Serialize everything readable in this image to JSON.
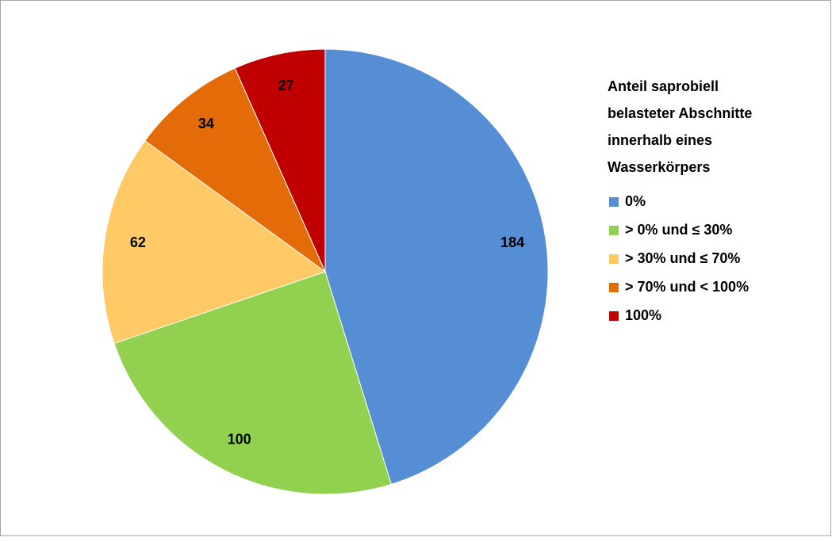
{
  "chart_data": {
    "type": "pie",
    "legend_title": [
      "Anteil saprobiell",
      "belasteter Abschnitte",
      "innerhalb eines",
      "Wasserkörpers"
    ],
    "categories": [
      "0%",
      "> 0% und ≤ 30%",
      "> 30% und ≤ 70%",
      "> 70% und < 100%",
      "100%"
    ],
    "values": [
      184,
      100,
      62,
      34,
      27
    ],
    "colors": [
      "#558ed5",
      "#92d050",
      "#ffc965",
      "#e36c09",
      "#c00000"
    ],
    "legend": "right"
  }
}
